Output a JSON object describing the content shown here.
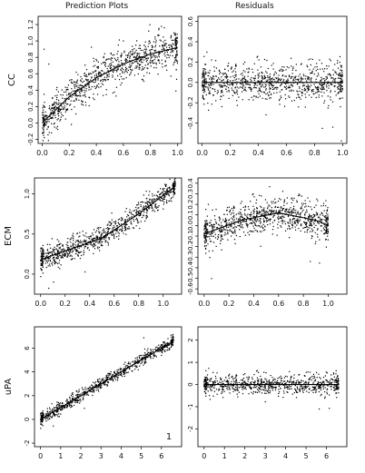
{
  "headers": {
    "left": "Prediction Plots",
    "right": "Residuals"
  },
  "colors": {
    "points": "#000000",
    "frame": "#000000",
    "background": "#ffffff"
  },
  "chart_data": [
    {
      "type": "scatter",
      "row": 0,
      "col": 0,
      "ylabel": "CC",
      "xlim": [
        -0.03,
        1.03
      ],
      "ylim": [
        -0.25,
        1.3
      ],
      "xticks": [
        "0.0",
        "0.2",
        "0.4",
        "0.6",
        "0.8",
        "1.0"
      ],
      "yticks": [
        "-0.2",
        "0.0",
        "0.2",
        "0.4",
        "0.6",
        "0.8",
        "1.0",
        "1.2"
      ],
      "trend": {
        "kind": "saturating",
        "points": [
          [
            0.0,
            0.0
          ],
          [
            0.2,
            0.32
          ],
          [
            0.4,
            0.55
          ],
          [
            0.6,
            0.72
          ],
          [
            0.8,
            0.84
          ],
          [
            1.0,
            0.92
          ]
        ]
      },
      "spread": 0.11,
      "n_points": 900,
      "annotation": ""
    },
    {
      "type": "scatter",
      "row": 0,
      "col": 1,
      "ylabel": "",
      "xlim": [
        -0.03,
        1.03
      ],
      "ylim": [
        -0.6,
        0.65
      ],
      "xticks": [
        "0.0",
        "0.2",
        "0.4",
        "0.6",
        "0.8",
        "1.0"
      ],
      "yticks": [
        "-0.4",
        "-0.2",
        "0.0",
        "0.2",
        "0.4",
        "0.6"
      ],
      "trend": {
        "kind": "flat",
        "points": [
          [
            0.0,
            0.0
          ],
          [
            1.0,
            0.0
          ]
        ]
      },
      "spread": 0.09,
      "n_points": 900,
      "annotation": ""
    },
    {
      "type": "scatter",
      "row": 1,
      "col": 0,
      "ylabel": "ECM",
      "xlim": [
        -0.05,
        1.15
      ],
      "ylim": [
        -0.25,
        1.2
      ],
      "xticks": [
        "0.0",
        "0.2",
        "0.4",
        "0.6",
        "0.8",
        "1.0"
      ],
      "yticks": [
        "0.0",
        "0.5",
        "1.0"
      ],
      "trend": {
        "kind": "linear",
        "points": [
          [
            0.0,
            0.18
          ],
          [
            0.5,
            0.45
          ],
          [
            0.8,
            0.75
          ],
          [
            1.1,
            1.1
          ]
        ]
      },
      "spread": 0.07,
      "n_points": 900,
      "annotation": ""
    },
    {
      "type": "scatter",
      "row": 1,
      "col": 1,
      "ylabel": "",
      "xlim": [
        -0.05,
        1.15
      ],
      "ylim": [
        -0.65,
        0.45
      ],
      "xticks": [
        "0.0",
        "0.2",
        "0.4",
        "0.6",
        "0.8",
        "1.0"
      ],
      "yticks": [
        "-0.6",
        "-0.5",
        "-0.4",
        "-0.3",
        "-0.2",
        "-0.1",
        "0.0",
        "0.1",
        "0.2",
        "0.3",
        "0.4"
      ],
      "trend": {
        "kind": "hump",
        "points": [
          [
            0.0,
            -0.08
          ],
          [
            0.3,
            0.05
          ],
          [
            0.6,
            0.12
          ],
          [
            0.9,
            0.05
          ],
          [
            1.0,
            0.0
          ]
        ]
      },
      "spread": 0.08,
      "n_points": 900,
      "annotation": ""
    },
    {
      "type": "scatter",
      "row": 2,
      "col": 0,
      "ylabel": "uPA",
      "xlim": [
        -0.3,
        7.0
      ],
      "ylim": [
        -2.3,
        7.8
      ],
      "xticks": [
        "0",
        "1",
        "2",
        "3",
        "4",
        "5",
        "6"
      ],
      "yticks": [
        "-2",
        "0",
        "2",
        "4",
        "6"
      ],
      "trend": {
        "kind": "linear",
        "points": [
          [
            0.0,
            0.0
          ],
          [
            6.6,
            6.6
          ]
        ]
      },
      "spread": 0.25,
      "n_points": 800,
      "annotation": "1"
    },
    {
      "type": "scatter",
      "row": 2,
      "col": 1,
      "ylabel": "",
      "xlim": [
        -0.3,
        7.0
      ],
      "ylim": [
        -2.8,
        2.6
      ],
      "xticks": [
        "0",
        "1",
        "2",
        "3",
        "4",
        "5",
        "6"
      ],
      "yticks": [
        "-2",
        "-1",
        "0",
        "1",
        "2"
      ],
      "trend": {
        "kind": "flat",
        "points": [
          [
            0.0,
            0.0
          ],
          [
            6.6,
            0.0
          ]
        ]
      },
      "spread": 0.22,
      "n_points": 800,
      "annotation": ""
    }
  ]
}
